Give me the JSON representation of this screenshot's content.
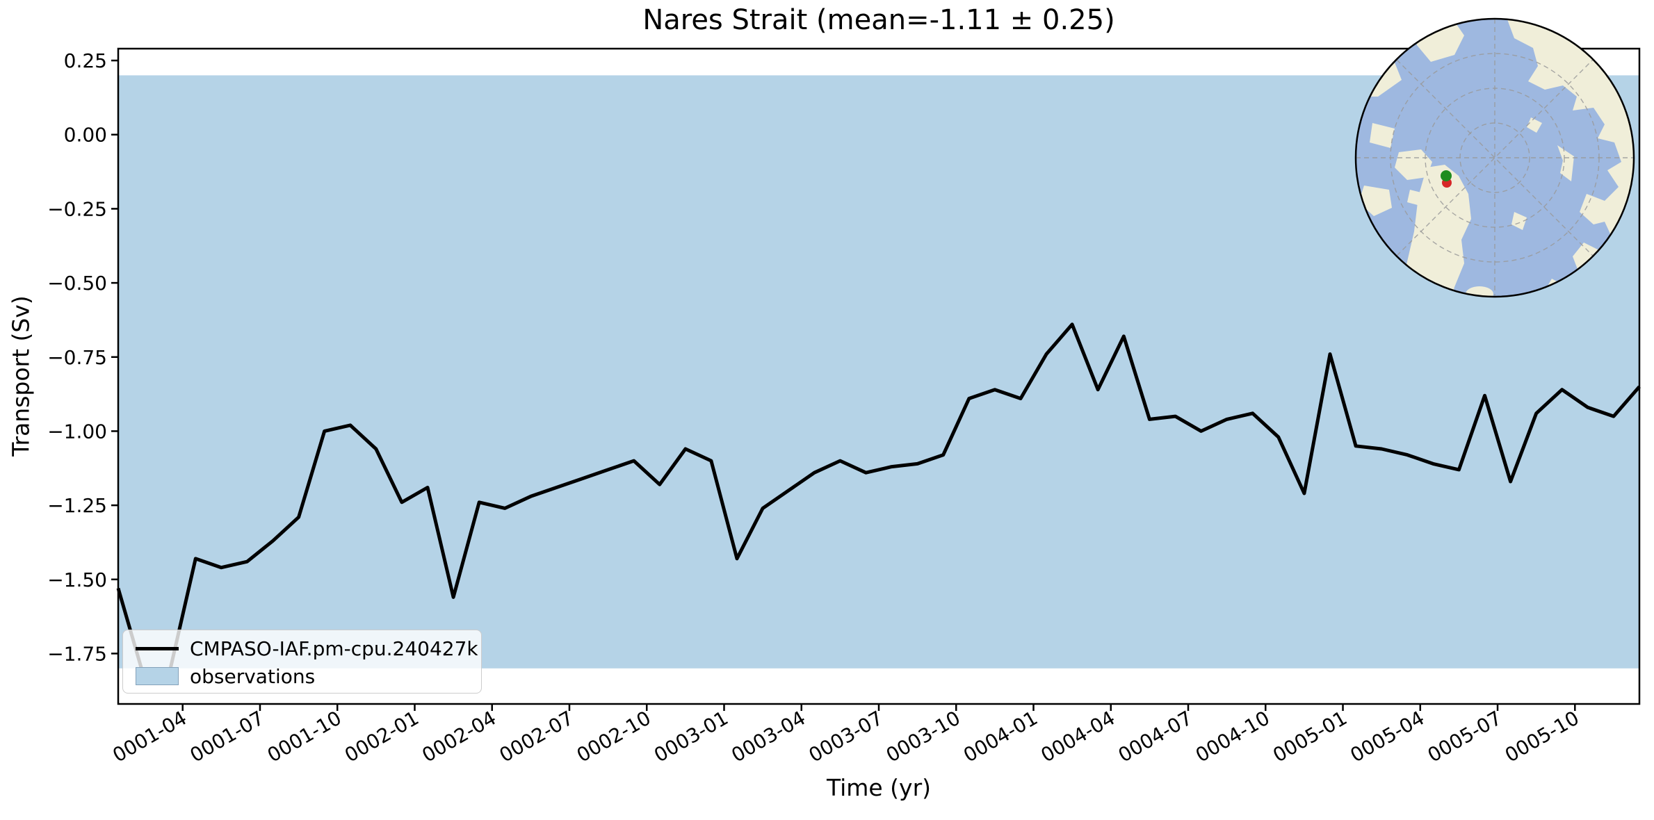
{
  "figure": {
    "title": "Nares Strait (mean=-1.11 ± 0.25)"
  },
  "axes": {
    "xlabel": "Time (yr)",
    "ylabel": "Transport (Sv)"
  },
  "legend": {
    "items": [
      {
        "label": "CMPASO-IAF.pm-cpu.240427k",
        "type": "line"
      },
      {
        "label": "observations",
        "type": "patch"
      }
    ]
  },
  "inset_map": {
    "description": "arctic-polar-stereographic-inset",
    "markers": [
      {
        "name": "station-marker-green",
        "color": "#1f8c1f"
      },
      {
        "name": "station-marker-red",
        "color": "#d62728"
      }
    ]
  },
  "colors": {
    "line": "#000000",
    "band": "#b5d3e7",
    "map_ocean": "#9eb8e0",
    "map_land": "#f0eed9",
    "marker_green": "#1f8c1f",
    "marker_red": "#d62728"
  },
  "chart_data": {
    "type": "line",
    "title": "Nares Strait (mean=-1.11 ± 0.25)",
    "xlabel": "Time (yr)",
    "ylabel": "Transport (Sv)",
    "ylim": [
      -1.92,
      0.29
    ],
    "grid": false,
    "legend_position": "lower left",
    "stats": {
      "mean": -1.11,
      "std": 0.25
    },
    "observations_band": {
      "min": -1.8,
      "max": 0.2
    },
    "x": [
      "0001-01",
      "0001-02",
      "0001-03",
      "0001-04",
      "0001-05",
      "0001-06",
      "0001-07",
      "0001-08",
      "0001-09",
      "0001-10",
      "0001-11",
      "0001-12",
      "0002-01",
      "0002-02",
      "0002-03",
      "0002-04",
      "0002-05",
      "0002-06",
      "0002-07",
      "0002-08",
      "0002-09",
      "0002-10",
      "0002-11",
      "0002-12",
      "0003-01",
      "0003-02",
      "0003-03",
      "0003-04",
      "0003-05",
      "0003-06",
      "0003-07",
      "0003-08",
      "0003-09",
      "0003-10",
      "0003-11",
      "0003-12",
      "0004-01",
      "0004-02",
      "0004-03",
      "0004-04",
      "0004-05",
      "0004-06",
      "0004-07",
      "0004-08",
      "0004-09",
      "0004-10",
      "0004-11",
      "0004-12",
      "0005-01",
      "0005-02",
      "0005-03",
      "0005-04",
      "0005-05",
      "0005-06",
      "0005-07",
      "0005-08",
      "0005-09",
      "0005-10",
      "0005-11",
      "0005-12"
    ],
    "series": [
      {
        "name": "CMPASO-IAF.pm-cpu.240427k",
        "values": [
          -1.53,
          -1.83,
          -1.81,
          -1.43,
          -1.46,
          -1.44,
          -1.37,
          -1.29,
          -1.0,
          -0.98,
          -1.06,
          -1.24,
          -1.19,
          -1.56,
          -1.24,
          -1.26,
          -1.22,
          -1.19,
          -1.16,
          -1.13,
          -1.1,
          -1.18,
          -1.06,
          -1.1,
          -1.43,
          -1.26,
          -1.2,
          -1.14,
          -1.1,
          -1.14,
          -1.12,
          -1.11,
          -1.08,
          -0.89,
          -0.86,
          -0.89,
          -0.74,
          -0.64,
          -0.86,
          -0.68,
          -0.96,
          -0.95,
          -1.0,
          -0.96,
          -0.94,
          -1.02,
          -1.21,
          -0.74,
          -1.05,
          -1.06,
          -1.08,
          -1.11,
          -1.13,
          -0.88,
          -1.17,
          -0.94,
          -0.86,
          -0.92,
          -0.95,
          -0.85
        ]
      }
    ],
    "xtick_labels": [
      "0001-04",
      "0001-07",
      "0001-10",
      "0002-01",
      "0002-04",
      "0002-07",
      "0002-10",
      "0003-01",
      "0003-04",
      "0003-07",
      "0003-10",
      "0004-01",
      "0004-04",
      "0004-07",
      "0004-10",
      "0005-01",
      "0005-04",
      "0005-07",
      "0005-10"
    ],
    "ytick_values": [
      0.25,
      0.0,
      -0.25,
      -0.5,
      -0.75,
      -1.0,
      -1.25,
      -1.5,
      -1.75
    ],
    "ytick_labels": [
      "0.25",
      "0.00",
      "−0.25",
      "−0.50",
      "−0.75",
      "−1.00",
      "−1.25",
      "−1.50",
      "−1.75"
    ]
  }
}
